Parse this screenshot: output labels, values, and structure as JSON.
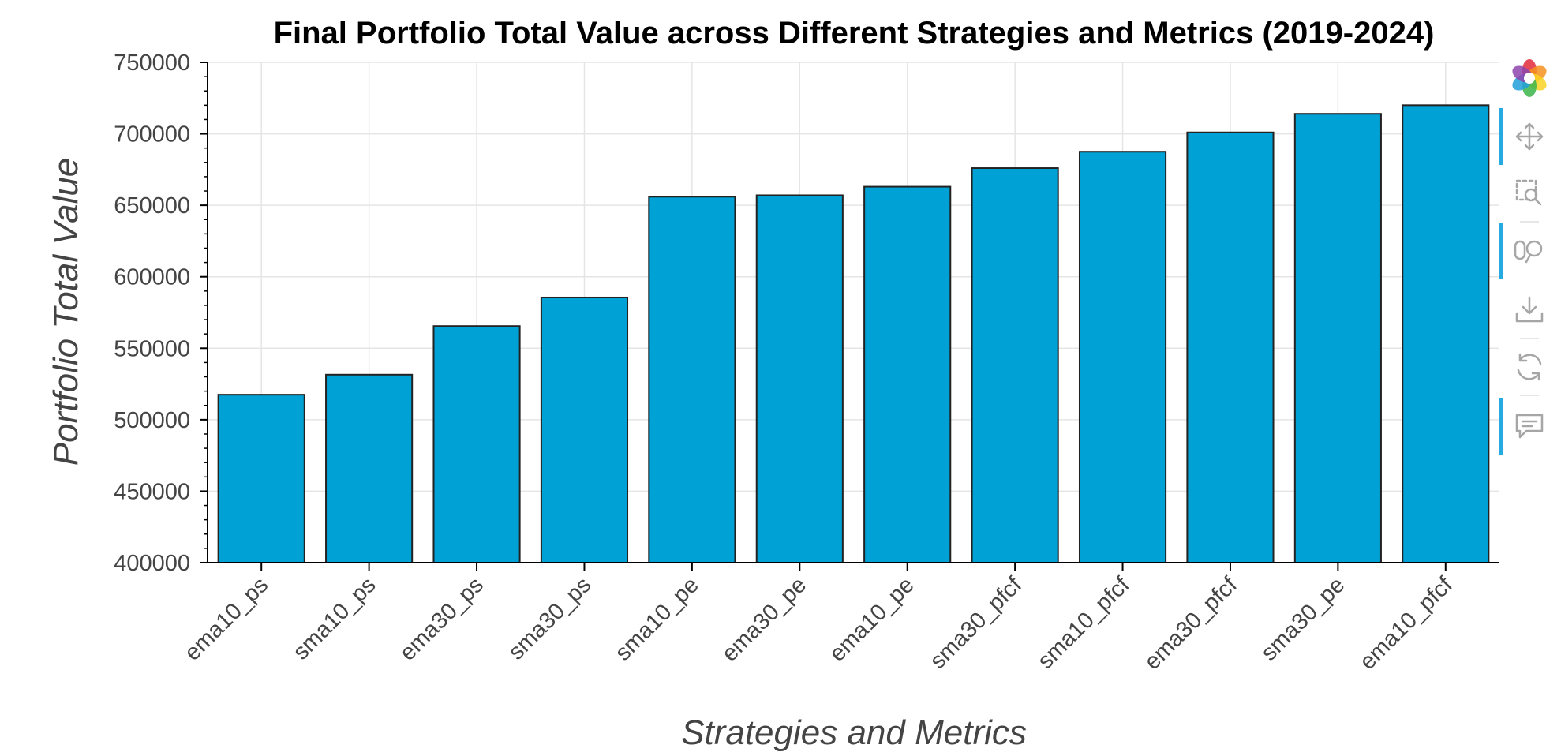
{
  "chart_data": {
    "type": "bar",
    "title": "Final Portfolio Total Value across Different Strategies and Metrics (2019-2024)",
    "xlabel": "Strategies and Metrics",
    "ylabel": "Portfolio Total Value",
    "ylim": [
      400000,
      750000
    ],
    "yticks": [
      "400000",
      "450000",
      "500000",
      "550000",
      "600000",
      "650000",
      "700000",
      "750000"
    ],
    "categories": [
      "ema10_ps",
      "sma10_ps",
      "ema30_ps",
      "sma30_ps",
      "sma10_pe",
      "ema30_pe",
      "ema10_pe",
      "sma30_pfcf",
      "sma10_pfcf",
      "ema30_pfcf",
      "sma30_pe",
      "ema10_pfcf"
    ],
    "values": [
      517500,
      531500,
      565500,
      585500,
      656000,
      657000,
      663000,
      676000,
      687500,
      701000,
      714000,
      720000
    ],
    "grid": true,
    "bar_color": "#00a2d6",
    "bar_edge_color": "#222222"
  },
  "toolbar": {
    "items": [
      {
        "icon": "bokeh-logo-icon"
      },
      {
        "icon": "pan-icon",
        "active": true
      },
      {
        "icon": "box-zoom-icon",
        "active": false
      },
      {
        "icon": "wheel-zoom-icon",
        "active": true
      },
      {
        "icon": "save-icon",
        "active": false
      },
      {
        "icon": "reset-icon",
        "active": false
      },
      {
        "icon": "hover-icon",
        "active": true
      }
    ],
    "active_color": "#26aae1",
    "icon_color": "#a6a6a6"
  }
}
